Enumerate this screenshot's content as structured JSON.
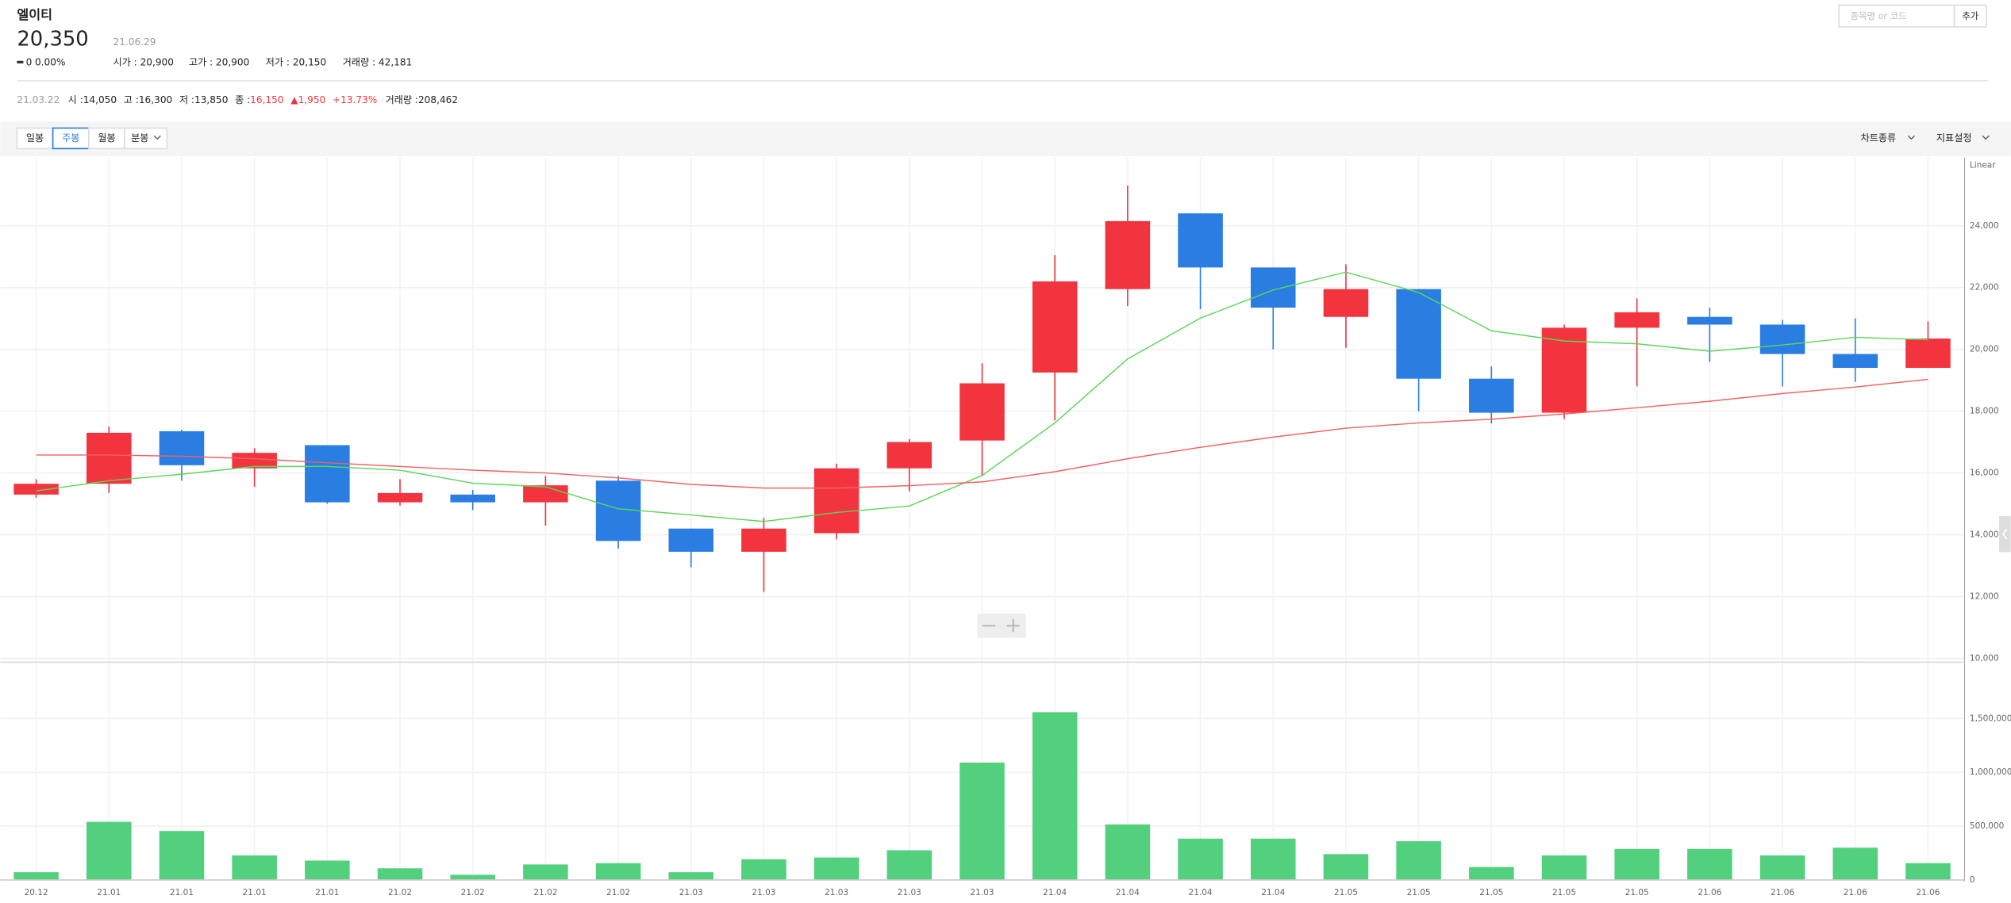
{
  "header": {
    "name": "엘이티",
    "price": "20,350",
    "date": "21.06.29",
    "change": "0",
    "change_pct": "0.00%",
    "stats": [
      "시가 : 20,900",
      "고가 : 20,900",
      "저가 : 20,150",
      "거래량 : 42,181"
    ]
  },
  "search": {
    "placeholder": "종목명 or 코드",
    "button": "추가"
  },
  "info_bar": {
    "date": "21.03.22",
    "items": [
      {
        "label": "시 :",
        "value": "14,050"
      },
      {
        "label": "고 :",
        "value": "16,300"
      },
      {
        "label": "저 :",
        "value": "13,850"
      },
      {
        "label": "종 :",
        "value": "16,150"
      }
    ],
    "change": "1,950",
    "change_pct": "+13.73%",
    "volume": {
      "label": "거래량 :",
      "value": "208,462"
    }
  },
  "toolbar": {
    "tabs": [
      "일봉",
      "주봉",
      "월봉",
      "분봉"
    ],
    "active_tab": "주봉",
    "menus": [
      "차트종류",
      "지표설정"
    ]
  },
  "chart_data": [
    {
      "type": "candlestick",
      "y_axis_label": "Linear",
      "categories": [
        "20.12",
        "21.01",
        "21.01",
        "21.01",
        "21.01",
        "21.02",
        "21.02",
        "21.02",
        "21.02",
        "21.03",
        "21.03",
        "21.03",
        "21.03",
        "21.03",
        "21.04",
        "21.04",
        "21.04",
        "21.04",
        "21.05",
        "21.05",
        "21.05",
        "21.05",
        "21.05",
        "21.06",
        "21.06",
        "21.06",
        "21.06"
      ],
      "open": [
        15300,
        15650,
        17350,
        16150,
        16900,
        15050,
        15300,
        15050,
        15750,
        14200,
        13450,
        14050,
        16150,
        17050,
        19250,
        21950,
        24400,
        22650,
        21050,
        21950,
        19050,
        17950,
        20700,
        21050,
        20800,
        19850,
        19400
      ],
      "high": [
        15800,
        17500,
        17400,
        16800,
        16900,
        15800,
        15450,
        15900,
        15900,
        14200,
        14550,
        16300,
        17100,
        19550,
        23050,
        25300,
        24400,
        22650,
        22750,
        21950,
        19450,
        20800,
        21650,
        21350,
        20950,
        21000,
        20900
      ],
      "low": [
        15200,
        15350,
        15750,
        15550,
        15000,
        14950,
        14800,
        14300,
        13550,
        12950,
        12150,
        13850,
        15400,
        15900,
        17700,
        21400,
        21300,
        20000,
        20050,
        18000,
        17600,
        17750,
        18800,
        19600,
        18800,
        18950,
        19400
      ],
      "close": [
        15650,
        17300,
        16250,
        16650,
        15050,
        15350,
        15050,
        15600,
        13800,
        13450,
        14200,
        16150,
        17000,
        18900,
        22200,
        24150,
        22650,
        21350,
        21950,
        19050,
        17950,
        20700,
        21200,
        20800,
        19850,
        19400,
        20350
      ],
      "up_color": "#f2343f",
      "down_color": "#2a7de1",
      "lines": [
        {
          "color": "#5cd65c",
          "values": [
            15420,
            15750,
            15960,
            16210,
            16210,
            16090,
            15670,
            15550,
            14840,
            14640,
            14430,
            14720,
            14930,
            15920,
            17620,
            19690,
            21010,
            21920,
            22500,
            21840,
            20600,
            20270,
            20180,
            19940,
            20140,
            20390,
            20310
          ]
        },
        {
          "color": "#f26161",
          "values": [
            16580,
            16580,
            16540,
            16460,
            16330,
            16210,
            16090,
            16000,
            15840,
            15630,
            15510,
            15510,
            15590,
            15710,
            16040,
            16460,
            16830,
            17160,
            17450,
            17620,
            17740,
            17910,
            18110,
            18320,
            18570,
            18780,
            19030
          ]
        }
      ],
      "ylim": [
        10000,
        26000
      ],
      "yticks": [
        {
          "value": 10000,
          "label": "10,000"
        },
        {
          "value": 12000,
          "label": "12,000"
        },
        {
          "value": 14000,
          "label": "14,000"
        },
        {
          "value": 16000,
          "label": "16,000"
        },
        {
          "value": 18000,
          "label": "18,000"
        },
        {
          "value": 20000,
          "label": "20,000"
        },
        {
          "value": 22000,
          "label": "22,000"
        },
        {
          "value": 24000,
          "label": "24,000"
        }
      ],
      "grid": true
    },
    {
      "type": "bar",
      "color": "#52d07e",
      "values": [
        72000,
        540000,
        455000,
        228000,
        180000,
        108000,
        48000,
        144000,
        156000,
        72000,
        192000,
        208462,
        276000,
        1091000,
        1559000,
        516000,
        384000,
        384000,
        240000,
        360000,
        120000,
        228000,
        288000,
        288000,
        228000,
        300000,
        156000
      ],
      "ylim": [
        0,
        2000000
      ],
      "yticks": [
        0,
        {
          "value": 500000,
          "label": "500,000"
        },
        {
          "value": 1000000,
          "label": "1,000,000"
        },
        {
          "value": 1500000,
          "label": "1,500,000"
        }
      ],
      "grid": true
    }
  ]
}
